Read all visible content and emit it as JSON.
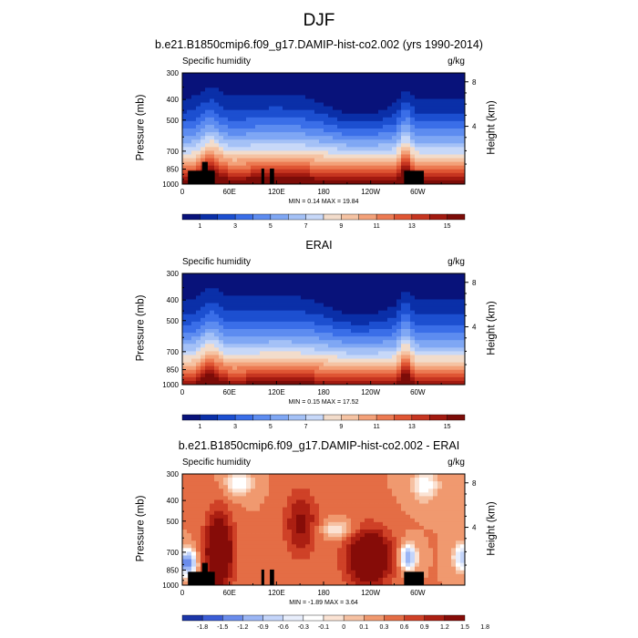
{
  "page_title": "DJF",
  "colors": {
    "humidity_scale": [
      "#08127a",
      "#0a2fa8",
      "#1c4fd0",
      "#3a6ee8",
      "#5d8cf0",
      "#7fa7f4",
      "#a4c1f6",
      "#c7d8f8",
      "#f2dccb",
      "#f5c3a3",
      "#f3a179",
      "#ec7a52",
      "#df5533",
      "#c63520",
      "#a21a10",
      "#7c0c08"
    ],
    "diff_scale": [
      "#1c36a8",
      "#3b5dd6",
      "#6a8cec",
      "#9bb6f5",
      "#c4d5fa",
      "#e8eefc",
      "#ffffff",
      "#fbe3d4",
      "#f6c1a2",
      "#f0996f",
      "#e46d45",
      "#cf4127",
      "#ab1f12",
      "#860c08"
    ]
  },
  "panels": [
    {
      "title": "b.e21.B1850cmip6.f09_g17.DAMIP-hist-co2.002 (yrs 1990-2014)",
      "variable": "Specific humidity",
      "units": "g/kg",
      "min_max": "MIN =   0.14  MAX =  19.84",
      "ylabel_left": "Pressure (mb)",
      "ylabel_right": "Height (km)",
      "chart_data": {
        "type": "heatmap",
        "x_ticks": [
          "0",
          "60E",
          "120E",
          "180",
          "120W",
          "60W"
        ],
        "y_ticks": [
          "300",
          "400",
          "500",
          "700",
          "850",
          "1000"
        ],
        "y2_ticks": [
          "8",
          "4"
        ],
        "colorbar_labels": [
          "1",
          "3",
          "5",
          "7",
          "9",
          "11",
          "13",
          "15"
        ],
        "min": 0.14,
        "max": 19.84
      }
    },
    {
      "title": "ERAI",
      "variable": "Specific humidity",
      "units": "g/kg",
      "min_max": "MIN =   0.15  MAX =  17.52",
      "ylabel_left": "Pressure (mb)",
      "ylabel_right": "Height (km)",
      "chart_data": {
        "type": "heatmap",
        "x_ticks": [
          "0",
          "60E",
          "120E",
          "180",
          "120W",
          "60W"
        ],
        "y_ticks": [
          "300",
          "400",
          "500",
          "700",
          "850",
          "1000"
        ],
        "y2_ticks": [
          "8",
          "4"
        ],
        "colorbar_labels": [
          "1",
          "3",
          "5",
          "7",
          "9",
          "11",
          "13",
          "15"
        ],
        "min": 0.15,
        "max": 17.52
      }
    },
    {
      "title": "b.e21.B1850cmip6.f09_g17.DAMIP-hist-co2.002 - ERAI",
      "variable": "Specific humidity",
      "units": "g/kg",
      "min_max": "MIN =  -1.89  MAX =   3.64",
      "ylabel_left": "Pressure (mb)",
      "ylabel_right": "Height (km)",
      "chart_data": {
        "type": "heatmap",
        "x_ticks": [
          "0",
          "60E",
          "120E",
          "180",
          "120W",
          "60W"
        ],
        "y_ticks": [
          "300",
          "400",
          "500",
          "700",
          "850",
          "1000"
        ],
        "y2_ticks": [
          "8",
          "4"
        ],
        "colorbar_labels": [
          "-1.8",
          "-1.5",
          "-1.2",
          "-0.9",
          "-0.6",
          "-0.3",
          "-0.1",
          "0",
          "0.1",
          "0.3",
          "0.6",
          "0.9",
          "1.2",
          "1.5",
          "1.8"
        ],
        "min": -1.89,
        "max": 3.64
      }
    }
  ]
}
